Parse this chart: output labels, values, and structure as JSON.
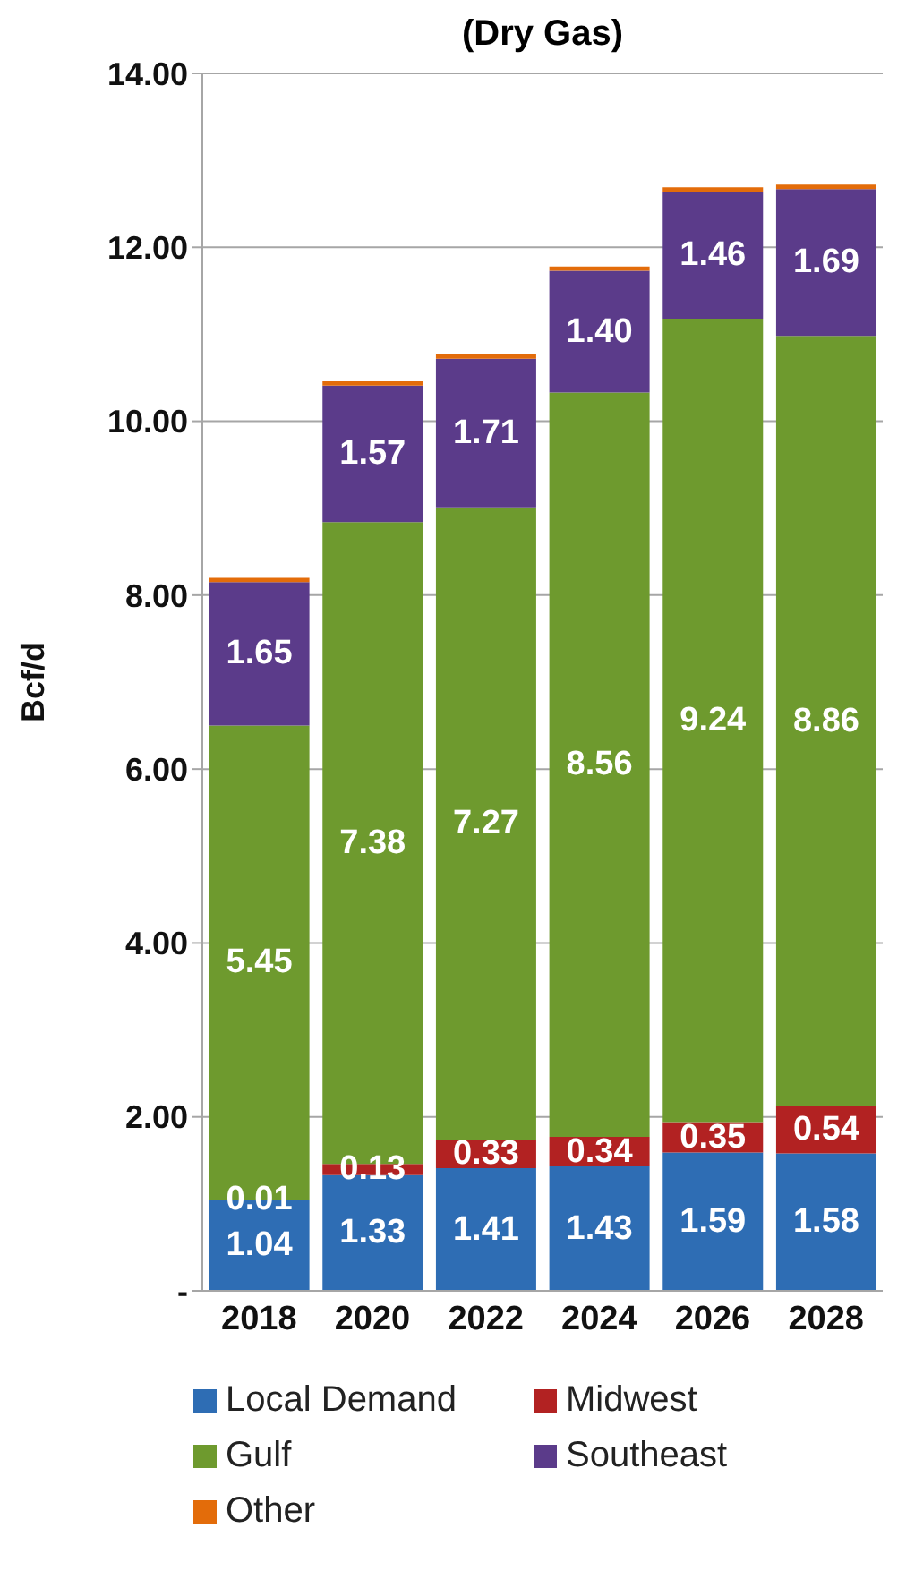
{
  "chart_data": {
    "type": "bar",
    "title": "(Dry Gas)",
    "ylabel": "Bcf/d",
    "stacked": true,
    "grid": "y",
    "legend": "bottom",
    "categories": [
      "2018",
      "2020",
      "2022",
      "2024",
      "2026",
      "2028"
    ],
    "ylim": [
      0,
      14
    ],
    "yticks": [
      {
        "value": 0,
        "label": "-"
      },
      {
        "value": 2,
        "label": "2.00"
      },
      {
        "value": 4,
        "label": "4.00"
      },
      {
        "value": 6,
        "label": "6.00"
      },
      {
        "value": 8,
        "label": "8.00"
      },
      {
        "value": 10,
        "label": "10.00"
      },
      {
        "value": 12,
        "label": "12.00"
      },
      {
        "value": 14,
        "label": "14.00"
      }
    ],
    "series": [
      {
        "name": "Local Demand",
        "color": "#2e6db4",
        "values": [
          1.04,
          1.33,
          1.41,
          1.43,
          1.59,
          1.58
        ],
        "value_labels": [
          "1.04",
          "1.33",
          "1.41",
          "1.43",
          "1.59",
          "1.58"
        ]
      },
      {
        "name": "Midwest",
        "color": "#b22222",
        "values": [
          0.01,
          0.13,
          0.33,
          0.34,
          0.35,
          0.54
        ],
        "value_labels": [
          "0.01",
          "0.13",
          "0.33",
          "0.34",
          "0.35",
          "0.54"
        ]
      },
      {
        "name": "Gulf",
        "color": "#6e9a2e",
        "values": [
          5.45,
          7.38,
          7.27,
          8.56,
          9.24,
          8.86
        ],
        "value_labels": [
          "5.45",
          "7.38",
          "7.27",
          "8.56",
          "9.24",
          "8.86"
        ]
      },
      {
        "name": "Southeast",
        "color": "#5b3b8a",
        "values": [
          1.65,
          1.57,
          1.71,
          1.4,
          1.46,
          1.69
        ],
        "value_labels": [
          "1.65",
          "1.57",
          "1.71",
          "1.40",
          "1.46",
          "1.69"
        ]
      },
      {
        "name": "Other",
        "color": "#e36c0a",
        "values": [
          0.05,
          0.05,
          0.05,
          0.05,
          0.05,
          0.05
        ],
        "value_labels": [
          null,
          null,
          null,
          null,
          null,
          null
        ]
      }
    ]
  }
}
